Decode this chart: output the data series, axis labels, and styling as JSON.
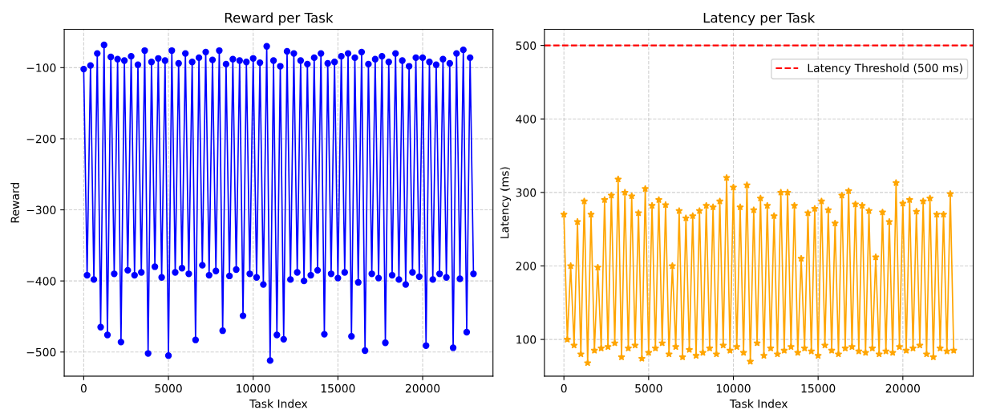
{
  "chart_data": [
    {
      "type": "line",
      "title": "Reward per Task",
      "xlabel": "Task Index",
      "ylabel": "Reward",
      "marker": "circle",
      "line_style": "solid",
      "grid": true,
      "legend": false,
      "x": [
        0,
        200,
        400,
        600,
        800,
        1000,
        1200,
        1400,
        1600,
        1800,
        2000,
        2200,
        2400,
        2600,
        2800,
        3000,
        3200,
        3400,
        3600,
        3800,
        4000,
        4200,
        4400,
        4600,
        4800,
        5000,
        5200,
        5400,
        5600,
        5800,
        6000,
        6200,
        6400,
        6600,
        6800,
        7000,
        7200,
        7400,
        7600,
        7800,
        8000,
        8200,
        8400,
        8600,
        8800,
        9000,
        9200,
        9400,
        9600,
        9800,
        10000,
        10200,
        10400,
        10600,
        10800,
        11000,
        11200,
        11400,
        11600,
        11800,
        12000,
        12200,
        12400,
        12600,
        12800,
        13000,
        13200,
        13400,
        13600,
        13800,
        14000,
        14200,
        14400,
        14600,
        14800,
        15000,
        15200,
        15400,
        15600,
        15800,
        16000,
        16200,
        16400,
        16600,
        16800,
        17000,
        17200,
        17400,
        17600,
        17800,
        18000,
        18200,
        18400,
        18600,
        18800,
        19000,
        19200,
        19400,
        19600,
        19800,
        20000,
        20200,
        20400,
        20600,
        20800,
        21000,
        21200,
        21400,
        21600,
        21800,
        22000,
        22200,
        22400,
        22600,
        22800,
        23000
      ],
      "series": [
        {
          "color": "#0000ff",
          "values": [
            -102,
            -392,
            -97,
            -398,
            -80,
            -465,
            -68,
            -476,
            -85,
            -390,
            -88,
            -486,
            -90,
            -385,
            -84,
            -392,
            -96,
            -388,
            -76,
            -502,
            -92,
            -380,
            -87,
            -395,
            -90,
            -505,
            -76,
            -388,
            -94,
            -382,
            -80,
            -390,
            -92,
            -483,
            -86,
            -378,
            -78,
            -392,
            -89,
            -386,
            -76,
            -470,
            -95,
            -393,
            -88,
            -384,
            -90,
            -449,
            -92,
            -390,
            -87,
            -395,
            -93,
            -405,
            -70,
            -512,
            -90,
            -476,
            -98,
            -482,
            -77,
            -398,
            -80,
            -388,
            -90,
            -400,
            -95,
            -392,
            -86,
            -385,
            -80,
            -475,
            -94,
            -390,
            -92,
            -396,
            -84,
            -388,
            -80,
            -478,
            -86,
            -402,
            -78,
            -498,
            -95,
            -390,
            -88,
            -396,
            -84,
            -487,
            -92,
            -392,
            -80,
            -398,
            -90,
            -405,
            -98,
            -388,
            -86,
            -394,
            -86,
            -491,
            -92,
            -398,
            -96,
            -390,
            -88,
            -395,
            -94,
            -494,
            -80,
            -397,
            -75,
            -472,
            -86,
            -390
          ]
        }
      ],
      "xlim": [
        -1150,
        24150
      ],
      "xticks": [
        0,
        5000,
        10000,
        15000,
        20000
      ],
      "ylim": [
        -534,
        -46
      ],
      "yticks": [
        {
          "value": -500,
          "label": "−500"
        },
        {
          "value": -400,
          "label": "−400"
        },
        {
          "value": -300,
          "label": "−300"
        },
        {
          "value": -200,
          "label": "−200"
        },
        {
          "value": -100,
          "label": "−100"
        }
      ]
    },
    {
      "type": "line",
      "title": "Latency per Task",
      "xlabel": "Task Index",
      "ylabel": "Latency (ms)",
      "marker": "star",
      "line_style": "solid",
      "grid": true,
      "legend": "top right",
      "x": [
        0,
        200,
        400,
        600,
        800,
        1000,
        1200,
        1400,
        1600,
        1800,
        2000,
        2200,
        2400,
        2600,
        2800,
        3000,
        3200,
        3400,
        3600,
        3800,
        4000,
        4200,
        4400,
        4600,
        4800,
        5000,
        5200,
        5400,
        5600,
        5800,
        6000,
        6200,
        6400,
        6600,
        6800,
        7000,
        7200,
        7400,
        7600,
        7800,
        8000,
        8200,
        8400,
        8600,
        8800,
        9000,
        9200,
        9400,
        9600,
        9800,
        10000,
        10200,
        10400,
        10600,
        10800,
        11000,
        11200,
        11400,
        11600,
        11800,
        12000,
        12200,
        12400,
        12600,
        12800,
        13000,
        13200,
        13400,
        13600,
        13800,
        14000,
        14200,
        14400,
        14600,
        14800,
        15000,
        15200,
        15400,
        15600,
        15800,
        16000,
        16200,
        16400,
        16600,
        16800,
        17000,
        17200,
        17400,
        17600,
        17800,
        18000,
        18200,
        18400,
        18600,
        18800,
        19000,
        19200,
        19400,
        19600,
        19800,
        20000,
        20200,
        20400,
        20600,
        20800,
        21000,
        21200,
        21400,
        21600,
        21800,
        22000,
        22200,
        22400,
        22600,
        22800,
        23000
      ],
      "series": [
        {
          "color": "#ffa500",
          "values": [
            270,
            100,
            200,
            92,
            260,
            80,
            288,
            68,
            270,
            85,
            198,
            88,
            290,
            90,
            296,
            95,
            318,
            76,
            300,
            88,
            295,
            92,
            272,
            74,
            305,
            82,
            282,
            88,
            290,
            95,
            283,
            80,
            200,
            90,
            275,
            76,
            265,
            86,
            268,
            78,
            275,
            82,
            282,
            88,
            280,
            80,
            288,
            92,
            320,
            85,
            307,
            90,
            280,
            82,
            310,
            70,
            276,
            95,
            292,
            78,
            282,
            88,
            268,
            80,
            300,
            85,
            300,
            90,
            282,
            82,
            210,
            88,
            272,
            84,
            278,
            78,
            288,
            92,
            276,
            85,
            258,
            80,
            296,
            88,
            302,
            90,
            284,
            84,
            282,
            82,
            275,
            88,
            212,
            80,
            273,
            84,
            260,
            82,
            313,
            90,
            285,
            85,
            290,
            88,
            274,
            92,
            288,
            80,
            292,
            76,
            270,
            88,
            270,
            84,
            298,
            85
          ]
        }
      ],
      "ref_lines": [
        {
          "axis": "y",
          "value": 500,
          "label": "Latency Threshold (500 ms)",
          "color": "#ff0000",
          "line_style": "dashed"
        }
      ],
      "xlim": [
        -1150,
        24150
      ],
      "xticks": [
        0,
        5000,
        10000,
        15000,
        20000
      ],
      "ylim": [
        50,
        522
      ],
      "yticks": [
        100,
        200,
        300,
        400,
        500
      ]
    }
  ]
}
